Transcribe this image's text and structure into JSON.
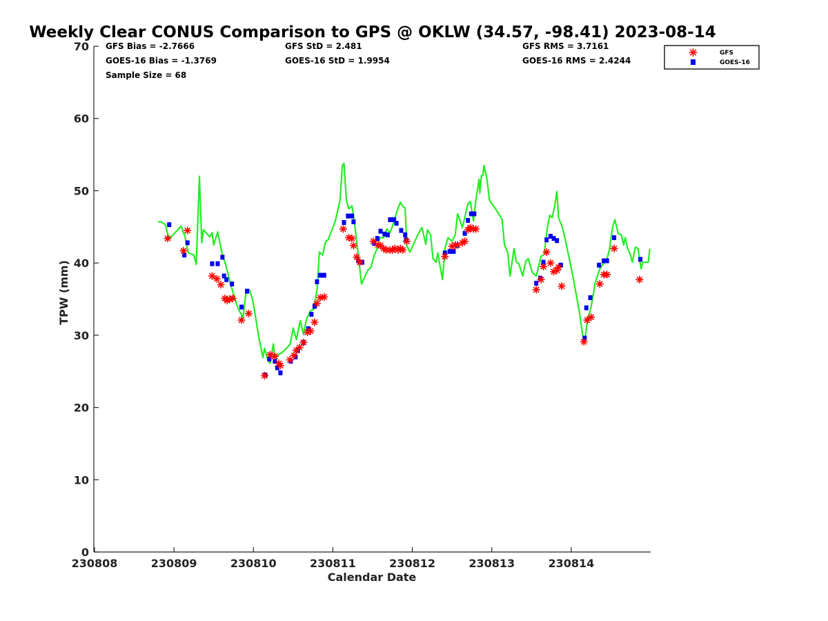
{
  "chart_data": {
    "type": "scatter",
    "title": "Weekly Clear CONUS Comparison to GPS @ OKLW (34.57, -98.41) 2023-08-14",
    "xlabel": "Calendar Date",
    "ylabel": "TPW (mm)",
    "x_units": "days since 230808",
    "xlim": [
      0,
      7
    ],
    "ylim": [
      0,
      70
    ],
    "xticks": [
      0,
      1,
      2,
      3,
      4,
      5,
      6
    ],
    "xtick_labels": [
      "230808",
      "230809",
      "230810",
      "230811",
      "230812",
      "230813",
      "230814"
    ],
    "yticks": [
      0,
      10,
      20,
      30,
      40,
      50,
      60,
      70
    ],
    "ytick_labels": [
      "0",
      "10",
      "20",
      "30",
      "40",
      "50",
      "60",
      "70"
    ],
    "grid": false,
    "legend_position": "top-right, outside",
    "stats": {
      "gfs_bias": "GFS Bias = -2.7666",
      "goes_bias": "GOES-16 Bias = -1.3769",
      "sample_size": "Sample Size = 68",
      "gfs_std": "GFS StD = 2.481",
      "goes_std": "GOES-16 StD = 1.9954",
      "gfs_rms": "GFS RMS = 3.7161",
      "goes_rms": "GOES-16 RMS = 2.4244"
    },
    "series": [
      {
        "name": "GPS",
        "style": "line",
        "color": "#22ee22",
        "x": [
          0.8,
          0.84,
          0.89,
          0.94,
          1.09,
          1.14,
          1.18,
          1.25,
          1.28,
          1.32,
          1.35,
          1.37,
          1.45,
          1.48,
          1.5,
          1.55,
          1.57,
          1.61,
          1.65,
          1.71,
          1.76,
          1.81,
          1.87,
          1.91,
          1.95,
          1.99,
          2.02,
          2.07,
          2.12,
          2.14,
          2.18,
          2.21,
          2.25,
          2.27,
          2.29,
          2.37,
          2.46,
          2.5,
          2.54,
          2.59,
          2.63,
          2.67,
          2.72,
          2.76,
          2.8,
          2.83,
          2.87,
          2.91,
          2.94,
          3.03,
          3.09,
          3.12,
          3.14,
          3.17,
          3.2,
          3.24,
          3.27,
          3.32,
          3.36,
          3.44,
          3.48,
          3.52,
          3.55,
          3.59,
          3.64,
          3.68,
          3.72,
          3.77,
          3.81,
          3.85,
          3.88,
          3.91,
          3.93,
          3.97,
          4.06,
          4.12,
          4.17,
          4.19,
          4.23,
          4.26,
          4.3,
          4.32,
          4.38,
          4.41,
          4.45,
          4.5,
          4.54,
          4.57,
          4.63,
          4.66,
          4.7,
          4.73,
          4.77,
          4.8,
          4.84,
          4.85,
          4.87,
          4.89,
          4.9,
          4.94,
          4.97,
          5.06,
          5.13,
          5.16,
          5.2,
          5.23,
          5.28,
          5.31,
          5.34,
          5.39,
          5.43,
          5.46,
          5.51,
          5.56,
          5.62,
          5.66,
          5.7,
          5.73,
          5.76,
          5.79,
          5.82,
          5.84,
          5.89,
          5.93,
          6.02,
          6.1,
          6.15,
          6.17,
          6.21,
          6.25,
          6.28,
          6.3,
          6.36,
          6.45,
          6.48,
          6.52,
          6.55,
          6.59,
          6.63,
          6.66,
          6.68,
          6.71,
          6.74,
          6.77,
          6.79,
          6.81,
          6.84,
          6.88,
          6.9,
          6.97,
          6.99
        ],
        "y": [
          45.7,
          45.7,
          45.3,
          43.3,
          45.1,
          43.6,
          41.4,
          41.1,
          39.8,
          52.0,
          42.8,
          44.6,
          43.6,
          44.2,
          42.5,
          44.3,
          43.2,
          41.1,
          39.8,
          37.2,
          35.3,
          33.6,
          32.5,
          36.3,
          36.3,
          34.9,
          33.0,
          29.6,
          26.9,
          28.2,
          26.6,
          26.1,
          28.8,
          26.7,
          27.1,
          27.7,
          28.7,
          31.0,
          29.4,
          32.0,
          30.1,
          32.3,
          33.4,
          33.6,
          36.3,
          41.5,
          41.1,
          43.0,
          43.2,
          45.8,
          48.7,
          53.5,
          53.8,
          48.7,
          47.5,
          47.9,
          45.8,
          41.1,
          37.1,
          39.0,
          39.4,
          41.1,
          41.8,
          43.5,
          43.5,
          44.7,
          44.2,
          45.7,
          47.3,
          48.4,
          47.8,
          47.6,
          42.4,
          41.5,
          43.7,
          44.9,
          42.6,
          44.6,
          43.9,
          40.6,
          40.1,
          41.4,
          37.7,
          42.0,
          43.5,
          43.0,
          43.9,
          46.8,
          44.9,
          46.3,
          48.2,
          48.5,
          45.8,
          48.7,
          51.6,
          49.7,
          52.1,
          52.1,
          53.5,
          51.6,
          48.7,
          47.3,
          46.0,
          42.5,
          41.5,
          38.2,
          42.0,
          40.1,
          39.9,
          38.2,
          40.3,
          40.6,
          38.7,
          38.2,
          40.9,
          41.2,
          44.9,
          46.6,
          46.3,
          47.8,
          49.9,
          46.3,
          44.9,
          43.0,
          38.2,
          33.4,
          29.6,
          29.3,
          32.3,
          33.9,
          35.8,
          37.2,
          39.2,
          40.6,
          41.8,
          44.9,
          46.0,
          44.1,
          43.9,
          42.5,
          43.5,
          42.0,
          41.3,
          40.1,
          41.3,
          42.2,
          42.0,
          39.2,
          40.1,
          40.1,
          42.0
        ]
      },
      {
        "name": "GFS",
        "style": "asterisk",
        "color": "#ff0000",
        "x": [
          0.92,
          1.12,
          1.17,
          1.48,
          1.54,
          1.59,
          1.64,
          1.67,
          1.7,
          1.74,
          1.85,
          1.94,
          2.14,
          2.21,
          2.27,
          2.32,
          2.34,
          2.46,
          2.51,
          2.54,
          2.58,
          2.63,
          2.68,
          2.72,
          2.77,
          2.8,
          2.84,
          2.89,
          3.13,
          3.2,
          3.24,
          3.26,
          3.3,
          3.34,
          3.51,
          3.57,
          3.6,
          3.64,
          3.67,
          3.72,
          3.75,
          3.78,
          3.82,
          3.85,
          3.88,
          3.93,
          4.41,
          4.5,
          4.54,
          4.57,
          4.63,
          4.66,
          4.7,
          4.73,
          4.77,
          4.8,
          5.56,
          5.62,
          5.65,
          5.69,
          5.74,
          5.78,
          5.82,
          5.84,
          5.88,
          6.16,
          6.2,
          6.25,
          6.36,
          6.41,
          6.45,
          6.54,
          6.86
        ],
        "y": [
          43.4,
          41.7,
          44.5,
          38.2,
          37.8,
          37.0,
          35.1,
          34.8,
          35.0,
          35.1,
          32.1,
          33.0,
          24.4,
          27.3,
          27.1,
          26.1,
          25.8,
          26.6,
          27.2,
          27.9,
          28.3,
          29.0,
          30.4,
          30.6,
          31.8,
          34.4,
          35.2,
          35.3,
          44.7,
          43.5,
          43.4,
          42.4,
          40.8,
          40.1,
          43.0,
          42.5,
          42.4,
          42.0,
          41.8,
          41.8,
          41.8,
          42.0,
          41.8,
          42.0,
          41.8,
          43.0,
          40.9,
          42.3,
          42.5,
          42.5,
          42.8,
          43.0,
          44.6,
          44.9,
          44.7,
          44.7,
          36.3,
          37.7,
          39.5,
          41.5,
          40.0,
          38.8,
          39.0,
          39.4,
          36.8,
          29.1,
          32.1,
          32.5,
          37.1,
          38.4,
          38.4,
          42.0,
          37.7
        ]
      },
      {
        "name": "GOES-16",
        "style": "square",
        "color": "#0000ee",
        "x": [
          0.94,
          1.13,
          1.17,
          1.48,
          1.55,
          1.61,
          1.63,
          1.66,
          1.73,
          1.85,
          1.92,
          2.15,
          2.2,
          2.27,
          2.3,
          2.34,
          2.47,
          2.53,
          2.56,
          2.63,
          2.69,
          2.73,
          2.77,
          2.8,
          2.84,
          2.89,
          3.14,
          3.19,
          3.24,
          3.26,
          3.32,
          3.37,
          3.52,
          3.56,
          3.6,
          3.65,
          3.69,
          3.72,
          3.77,
          3.8,
          3.86,
          3.91,
          3.92,
          4.41,
          4.47,
          4.52,
          4.56,
          4.66,
          4.7,
          4.74,
          4.78,
          5.56,
          5.61,
          5.65,
          5.69,
          5.74,
          5.78,
          5.82,
          5.87,
          6.17,
          6.19,
          6.24,
          6.35,
          6.41,
          6.45,
          6.54,
          6.87
        ],
        "y": [
          45.3,
          41.1,
          42.8,
          39.9,
          39.9,
          40.8,
          38.2,
          37.7,
          37.1,
          33.9,
          36.1,
          24.5,
          26.7,
          26.4,
          25.5,
          24.8,
          26.4,
          27.0,
          27.9,
          29.0,
          30.9,
          32.9,
          34.0,
          37.4,
          38.3,
          38.3,
          45.6,
          46.5,
          46.5,
          45.7,
          40.3,
          40.1,
          42.7,
          43.4,
          44.4,
          44.0,
          43.9,
          46.0,
          46.0,
          45.5,
          44.5,
          43.9,
          43.2,
          41.4,
          41.6,
          41.6,
          42.4,
          44.1,
          45.9,
          46.8,
          46.8,
          37.2,
          37.9,
          40.1,
          43.2,
          43.7,
          43.4,
          43.1,
          39.7,
          29.6,
          33.8,
          35.2,
          39.7,
          40.3,
          40.3,
          43.5,
          40.5
        ]
      }
    ]
  }
}
